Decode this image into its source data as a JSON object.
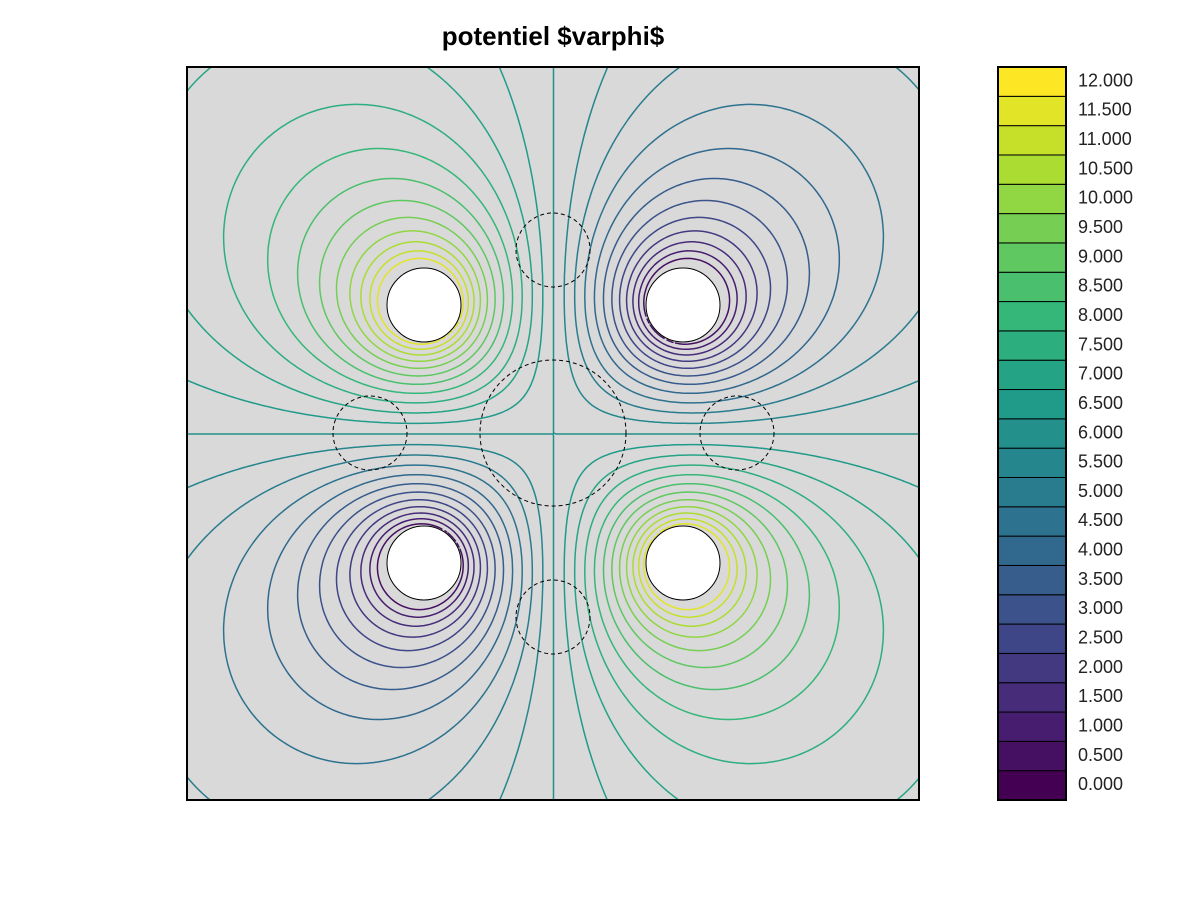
{
  "chart_data": {
    "type": "contour",
    "title": "potentiel $varphi$",
    "colormap": "viridis",
    "zlim": [
      0,
      12
    ],
    "colorbar_ticks": [
      {
        "value": 0,
        "label": "0.000"
      },
      {
        "value": 0.5,
        "label": "0.500"
      },
      {
        "value": 1,
        "label": "1.000"
      },
      {
        "value": 1.5,
        "label": "1.500"
      },
      {
        "value": 2,
        "label": "2.000"
      },
      {
        "value": 2.5,
        "label": "2.500"
      },
      {
        "value": 3,
        "label": "3.000"
      },
      {
        "value": 3.5,
        "label": "3.500"
      },
      {
        "value": 4,
        "label": "4.000"
      },
      {
        "value": 4.5,
        "label": "4.500"
      },
      {
        "value": 5,
        "label": "5.000"
      },
      {
        "value": 5.5,
        "label": "5.500"
      },
      {
        "value": 6,
        "label": "6.000"
      },
      {
        "value": 6.5,
        "label": "6.500"
      },
      {
        "value": 7,
        "label": "7.000"
      },
      {
        "value": 7.5,
        "label": "7.500"
      },
      {
        "value": 8,
        "label": "8.000"
      },
      {
        "value": 8.5,
        "label": "8.500"
      },
      {
        "value": 9,
        "label": "9.000"
      },
      {
        "value": 9.5,
        "label": "9.500"
      },
      {
        "value": 10,
        "label": "10.000"
      },
      {
        "value": 10.5,
        "label": "10.500"
      },
      {
        "value": 11,
        "label": "11.000"
      },
      {
        "value": 11.5,
        "label": "11.500"
      },
      {
        "value": 12,
        "label": "12.000"
      }
    ]
  }
}
